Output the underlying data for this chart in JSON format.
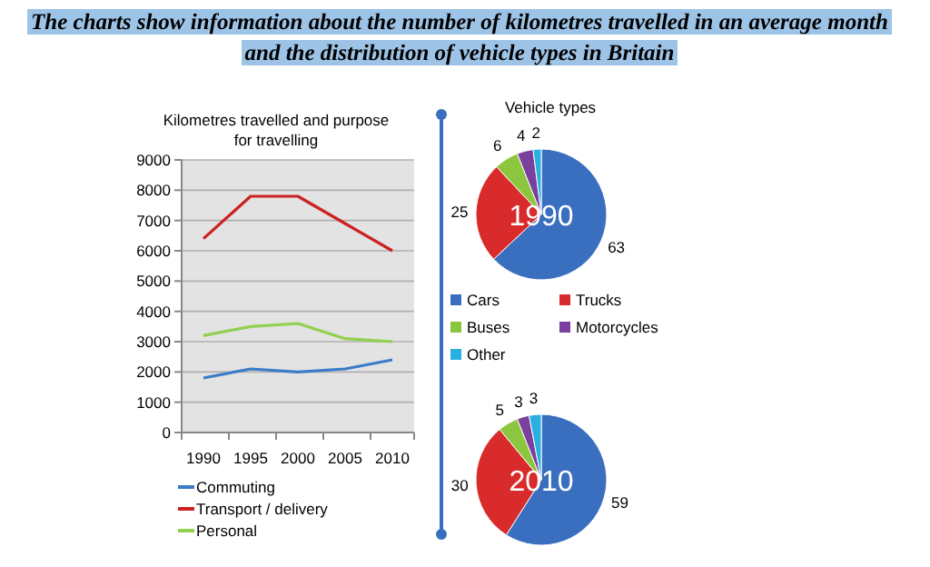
{
  "chart_data": [
    {
      "type": "other",
      "title": "The charts show information about the number of kilometres travelled in an average month and the distribution of vehicle types in Britain"
    },
    {
      "type": "line",
      "title": "Kilometres travelled and purpose for travelling",
      "categories": [
        "1990",
        "1995",
        "2000",
        "2005",
        "2010"
      ],
      "ylim": [
        0,
        9000
      ],
      "yticks": [
        0,
        1000,
        2000,
        3000,
        4000,
        5000,
        6000,
        7000,
        8000,
        9000
      ],
      "grid": "y",
      "legend": "bottom",
      "series": [
        {
          "name": "Commuting",
          "color": "#3a7cc9",
          "values": [
            1800,
            2100,
            2000,
            2100,
            2400
          ]
        },
        {
          "name": "Transport / delivery",
          "color": "#cc2222",
          "values": [
            6400,
            7800,
            7800,
            6900,
            6000
          ]
        },
        {
          "name": "Personal",
          "color": "#92d050",
          "values": [
            3200,
            3500,
            3600,
            3100,
            3000
          ]
        }
      ]
    },
    {
      "type": "pie",
      "title": "Vehicle types",
      "subtitle": "1990",
      "categories": [
        "Cars",
        "Trucks",
        "Buses",
        "Motorcycles",
        "Other"
      ],
      "values": [
        63,
        25,
        6,
        4,
        2
      ],
      "colors": [
        "#3a6fc0",
        "#d92b2b",
        "#8cc63f",
        "#7b3f9e",
        "#2ab0e0"
      ],
      "data_labels": true,
      "legend": "bottom"
    },
    {
      "type": "pie",
      "subtitle": "2010",
      "categories": [
        null,
        null,
        null,
        null,
        null
      ],
      "values": [
        59,
        30,
        5,
        3,
        3
      ],
      "colors": [
        "#3a6fc0",
        "#d92b2b",
        "#8cc63f",
        "#7b3f9e",
        "#2ab0e0"
      ],
      "data_labels": true
    }
  ]
}
